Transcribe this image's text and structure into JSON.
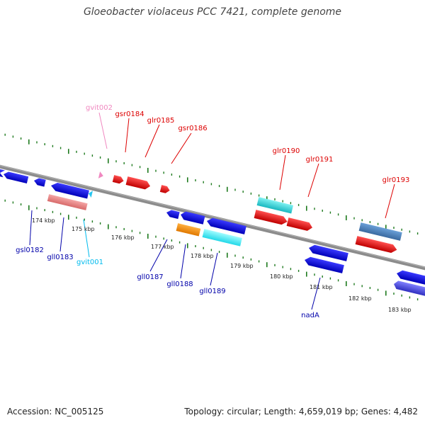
{
  "title": "Gloeobacter violaceus PCC 7421, complete genome",
  "accession_label": "Accession: NC_005125",
  "summary": "Topology: circular; Length: 4,659,019 bp; Genes: 4,482",
  "colors": {
    "backbone": "#808080",
    "tick": "#1e7a1e",
    "forward_label": "#dd0000",
    "reverse_label": "#0000aa",
    "ncrna_fwd_label": "#f088c0",
    "ncrna_rev_label": "#00bbee"
  },
  "kbp_labels": [
    "174 kbp",
    "175 kbp",
    "176 kbp",
    "177 kbp",
    "178 kbp",
    "179 kbp",
    "180 kbp",
    "181 kbp",
    "182 kbp",
    "183 kbp"
  ],
  "genes_forward": [
    {
      "name": "gvit002",
      "color": "#f088c0"
    },
    {
      "name": "gsr0184",
      "color": "#dd0000"
    },
    {
      "name": "glr0185",
      "color": "#dd0000"
    },
    {
      "name": "gsr0186",
      "color": "#dd0000"
    },
    {
      "name": "glr0190",
      "color": "#dd0000"
    },
    {
      "name": "glr0191",
      "color": "#dd0000"
    },
    {
      "name": "glr0193",
      "color": "#dd0000"
    }
  ],
  "genes_reverse": [
    {
      "name": "gsl0182",
      "color": "#0000aa"
    },
    {
      "name": "gll0183",
      "color": "#0000aa"
    },
    {
      "name": "gvit001",
      "color": "#00bbee"
    },
    {
      "name": "gll0187",
      "color": "#0000aa"
    },
    {
      "name": "gll0188",
      "color": "#0000aa"
    },
    {
      "name": "gll0189",
      "color": "#0000aa"
    },
    {
      "name": "nadA",
      "color": "#0000aa"
    }
  ]
}
